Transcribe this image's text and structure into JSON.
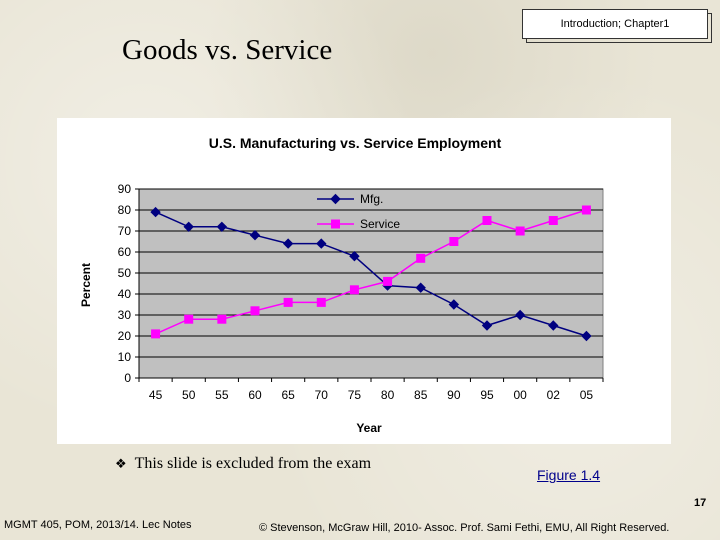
{
  "header": {
    "chapter_label": "Introduction; Chapter1",
    "title": "Goods vs. Service"
  },
  "chart_data": {
    "type": "line",
    "title": "U.S. Manufacturing vs. Service Employment",
    "xlabel": "Year",
    "ylabel": "Percent",
    "categories": [
      "45",
      "50",
      "55",
      "60",
      "65",
      "70",
      "75",
      "80",
      "85",
      "90",
      "95",
      "00",
      "02",
      "05"
    ],
    "ylim": [
      0,
      90
    ],
    "yticks": [
      0,
      10,
      20,
      30,
      40,
      50,
      60,
      70,
      80,
      90
    ],
    "grid": true,
    "legend_position": "top-center",
    "plot_background": "#c0c0c0",
    "series": [
      {
        "name": "Mfg.",
        "color": "#000080",
        "marker": "diamond",
        "values": [
          79,
          72,
          72,
          68,
          64,
          64,
          58,
          44,
          43,
          35,
          25,
          30,
          25,
          20
        ]
      },
      {
        "name": "Service",
        "color": "#ff00ff",
        "marker": "square",
        "values": [
          21,
          28,
          28,
          32,
          36,
          36,
          42,
          46,
          57,
          65,
          75,
          70,
          75,
          80
        ]
      }
    ]
  },
  "bullet": {
    "symbol": "❖",
    "text": "This slide is excluded from the exam"
  },
  "figure_label": "Figure 1.4",
  "page_number": "17",
  "footer": {
    "left": "MGMT 405, POM, 2013/14. Lec Notes",
    "right": "© Stevenson, McGraw Hill, 2010- Assoc. Prof. Sami Fethi, EMU, All Right Reserved."
  }
}
